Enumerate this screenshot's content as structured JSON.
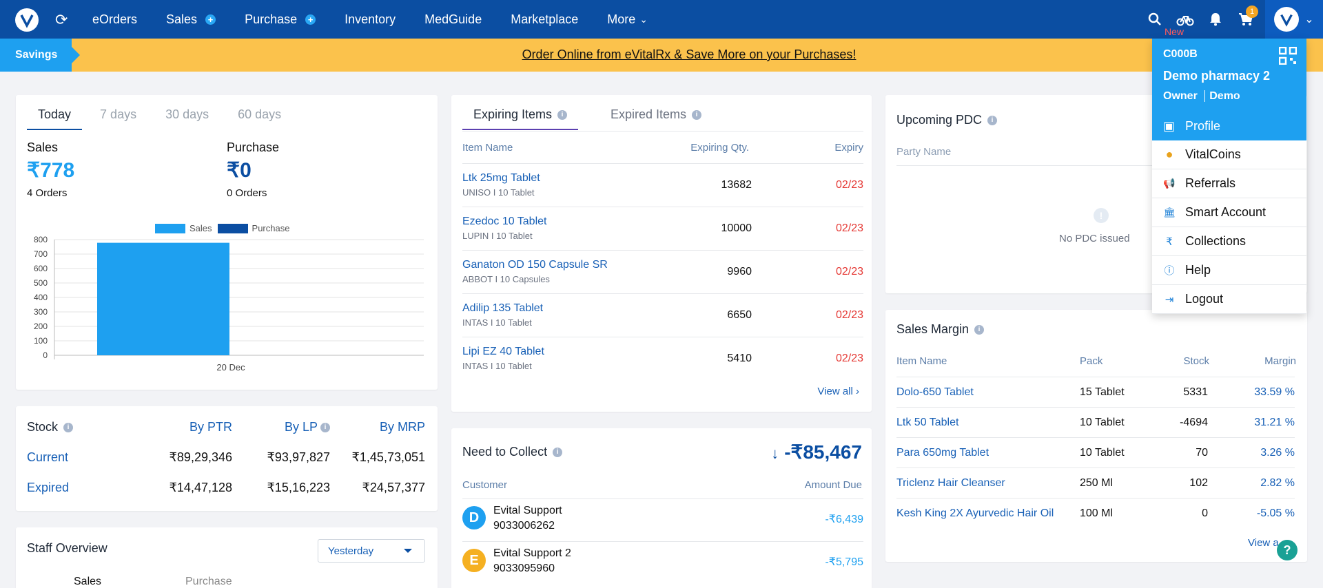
{
  "nav": {
    "items": [
      {
        "label": "eOrders",
        "plus": false
      },
      {
        "label": "Sales",
        "plus": true
      },
      {
        "label": "Purchase",
        "plus": true
      },
      {
        "label": "Inventory",
        "plus": false
      },
      {
        "label": "MedGuide",
        "plus": false
      },
      {
        "label": "Marketplace",
        "plus": false
      },
      {
        "label": "More",
        "plus": false
      }
    ],
    "new_label": "New",
    "cart_count": "1"
  },
  "banner": {
    "savings_label": "Savings",
    "text": "Order Online from eVitalRx & Save More on your Purchases!"
  },
  "summary": {
    "tabs": [
      "Today",
      "7 days",
      "30 days",
      "60 days"
    ],
    "sales_label": "Sales",
    "sales_value": "₹778",
    "sales_orders": "4 Orders",
    "purchase_label": "Purchase",
    "purchase_value": "₹0",
    "purchase_orders": "0 Orders"
  },
  "chart_data": {
    "type": "bar",
    "categories": [
      "20 Dec"
    ],
    "series": [
      {
        "name": "Sales",
        "values": [
          778
        ],
        "color": "#1ea0f0"
      },
      {
        "name": "Purchase",
        "values": [
          0
        ],
        "color": "#0b4ea2"
      }
    ],
    "ylim": [
      0,
      800
    ],
    "yticks": [
      0,
      100,
      200,
      300,
      400,
      500,
      600,
      700,
      800
    ],
    "grid": true,
    "legend": "top-center"
  },
  "stock": {
    "title": "Stock",
    "headers": [
      "By PTR",
      "By LP",
      "By MRP"
    ],
    "rows": [
      {
        "label": "Current",
        "values": [
          "₹89,29,346",
          "₹93,97,827",
          "₹1,45,73,051"
        ]
      },
      {
        "label": "Expired",
        "values": [
          "₹14,47,128",
          "₹15,16,223",
          "₹24,57,377"
        ]
      }
    ]
  },
  "staff": {
    "title": "Staff Overview",
    "period": "Yesterday",
    "col1": "Sales",
    "col2": "Purchase"
  },
  "expiring": {
    "tab_active": "Expiring Items",
    "tab_other": "Expired Items",
    "headers": [
      "Item Name",
      "Expiring Qty.",
      "Expiry"
    ],
    "rows": [
      {
        "name": "Ltk 25mg Tablet",
        "sub": "UNISO  I  10 Tablet",
        "qty": "13682",
        "expiry": "02/23"
      },
      {
        "name": "Ezedoc 10 Tablet",
        "sub": "LUPIN  I  10 Tablet",
        "qty": "10000",
        "expiry": "02/23"
      },
      {
        "name": "Ganaton OD 150 Capsule SR",
        "sub": "ABBOT  I  10 Capsules",
        "qty": "9960",
        "expiry": "02/23"
      },
      {
        "name": "Adilip 135 Tablet",
        "sub": "INTAS  I  10 Tablet",
        "qty": "6650",
        "expiry": "02/23"
      },
      {
        "name": "Lipi EZ 40 Tablet",
        "sub": "INTAS  I  10 Tablet",
        "qty": "5410",
        "expiry": "02/23"
      }
    ],
    "view_all": "View all"
  },
  "collect": {
    "title": "Need to Collect",
    "total": "-₹85,467",
    "headers": [
      "Customer",
      "Amount Due"
    ],
    "rows": [
      {
        "initial": "D",
        "name": "Evital Support",
        "phone": "9033006262",
        "amount": "-₹6,439",
        "color": "#1ea0f0"
      },
      {
        "initial": "E",
        "name": "Evital Support 2",
        "phone": "9033095960",
        "amount": "-₹5,795",
        "color": "#f5b021"
      }
    ]
  },
  "pdc": {
    "title": "Upcoming PDC",
    "header": "Party Name",
    "empty": "No PDC issued"
  },
  "margin": {
    "title": "Sales Margin",
    "headers": [
      "Item Name",
      "Pack",
      "Stock",
      "Margin"
    ],
    "rows": [
      {
        "name": "Dolo-650 Tablet",
        "pack": "15 Tablet",
        "stock": "5331",
        "margin": "33.59 %"
      },
      {
        "name": "Ltk 50 Tablet",
        "pack": "10 Tablet",
        "stock": "-4694",
        "margin": "31.21 %"
      },
      {
        "name": "Para 650mg Tablet",
        "pack": "10 Tablet",
        "stock": "70",
        "margin": "3.26 %"
      },
      {
        "name": "Triclenz Hair Cleanser",
        "pack": "250 Ml",
        "stock": "102",
        "margin": "2.82 %"
      },
      {
        "name": "Kesh King 2X Ayurvedic Hair Oil",
        "pack": "100 Ml",
        "stock": "0",
        "margin": "-5.05 %"
      }
    ],
    "view_all": "View a"
  },
  "profile_menu": {
    "code": "C000B",
    "store": "Demo pharmacy 2",
    "role": "Owner",
    "user": "Demo",
    "items": [
      {
        "label": "Profile",
        "icon": "store-icon"
      },
      {
        "label": "VitalCoins",
        "icon": "coin-icon"
      },
      {
        "label": "Referrals",
        "icon": "megaphone-icon"
      },
      {
        "label": "Smart Account",
        "icon": "bank-icon"
      },
      {
        "label": "Collections",
        "icon": "rupee-icon"
      },
      {
        "label": "Help",
        "icon": "info-icon"
      },
      {
        "label": "Logout",
        "icon": "logout-icon"
      }
    ]
  }
}
